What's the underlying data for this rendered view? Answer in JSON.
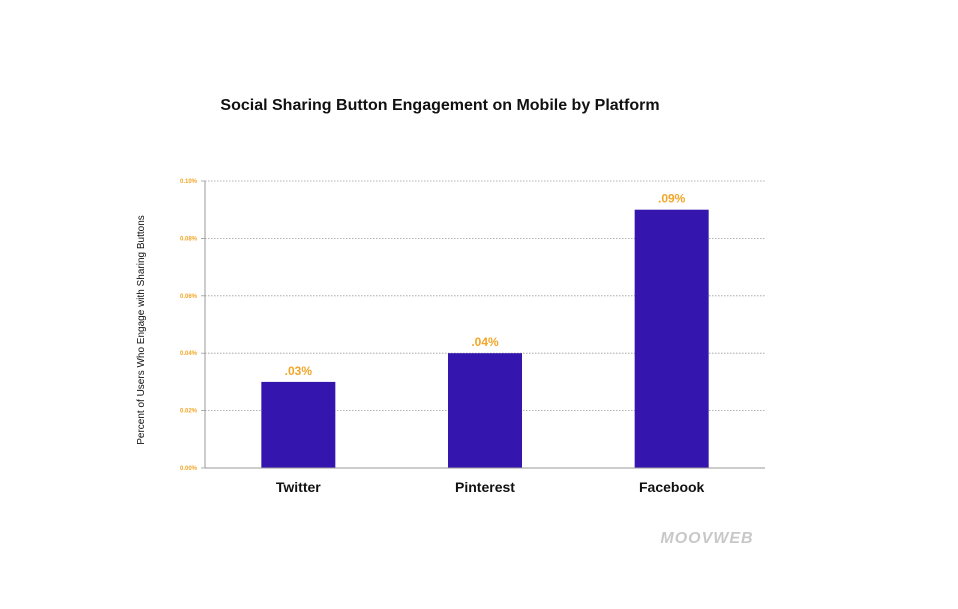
{
  "chart_data": {
    "type": "bar",
    "title": "Social Sharing Button Engagement on Mobile by Platform",
    "xlabel": "",
    "ylabel": "Percent of Users Who Engage with Sharing Buttons",
    "categories": [
      "Twitter",
      "Pinterest",
      "Facebook"
    ],
    "values": [
      0.03,
      0.04,
      0.09
    ],
    "data_labels": [
      ".03%",
      ".04%",
      ".09%"
    ],
    "yticks": [
      0,
      0.02,
      0.04,
      0.06,
      0.08,
      0.1
    ],
    "ytick_labels": [
      "0.00%",
      "0.02%",
      "0.04%",
      "0.06%",
      "0.08%",
      "0.10%"
    ],
    "ylim": [
      0,
      0.1
    ],
    "grid": true,
    "legend": "none",
    "bar_color": "#3415ad",
    "label_color": "#f2a629"
  },
  "watermark": "MOOVWEB"
}
